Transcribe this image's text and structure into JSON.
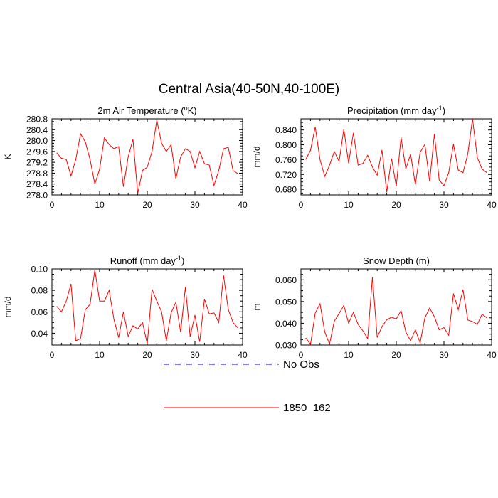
{
  "figure": {
    "title": "Central Asia(40-50N,40-100E)"
  },
  "colors": {
    "model": "#ff0000",
    "obs": "#0000ff",
    "axis": "#000000"
  },
  "legend": {
    "entries": [
      {
        "label": "No Obs",
        "style": "dashed",
        "color": "#0000ff"
      },
      {
        "label": "1850_162",
        "style": "solid",
        "color": "#ff0000"
      }
    ]
  },
  "chart_data": [
    {
      "type": "line",
      "title": "2m Air Temperature (°K)",
      "title_parts": [
        "2m Air Temperature (",
        "o",
        "K)"
      ],
      "ylabel": "K",
      "xlim": [
        0,
        40
      ],
      "ylim": [
        278.0,
        280.8
      ],
      "xticks": [
        0,
        10,
        20,
        30,
        40
      ],
      "yticks": [
        278.0,
        278.4,
        278.8,
        279.2,
        279.6,
        280.0,
        280.4,
        280.8
      ],
      "ytick_labels": [
        "278.0",
        "278.4",
        "278.8",
        "279.2",
        "279.6",
        "280.0",
        "280.4",
        "280.8"
      ],
      "series": [
        {
          "name": "1850_162",
          "x": [
            1,
            2,
            3,
            4,
            5,
            6,
            7,
            8,
            9,
            10,
            11,
            12,
            13,
            14,
            15,
            16,
            17,
            18,
            19,
            20,
            21,
            22,
            23,
            24,
            25,
            26,
            27,
            28,
            29,
            30,
            31,
            32,
            33,
            34,
            35,
            36,
            37,
            38,
            39
          ],
          "values": [
            279.55,
            279.35,
            279.3,
            278.7,
            279.3,
            280.25,
            279.95,
            279.3,
            278.4,
            278.95,
            280.1,
            279.85,
            279.7,
            279.78,
            278.3,
            279.4,
            280.05,
            278.05,
            278.9,
            279.02,
            279.6,
            280.75,
            279.9,
            279.6,
            279.85,
            278.6,
            279.4,
            279.7,
            279.6,
            279.0,
            279.6,
            279.15,
            279.1,
            278.35,
            278.9,
            279.7,
            279.75,
            278.9,
            278.78
          ]
        }
      ]
    },
    {
      "type": "line",
      "title": "Precipitation (mm day-1)",
      "title_parts": [
        "Precipitation (mm day",
        "-1",
        ")"
      ],
      "ylabel": "mm/d",
      "xlim": [
        0,
        40
      ],
      "ylim": [
        0.665,
        0.87
      ],
      "xticks": [
        0,
        10,
        20,
        30,
        40
      ],
      "yticks": [
        0.68,
        0.72,
        0.76,
        0.8,
        0.84
      ],
      "ytick_labels": [
        "0.680",
        "0.720",
        "0.760",
        "0.800",
        "0.840"
      ],
      "series": [
        {
          "name": "1850_162",
          "x": [
            1,
            2,
            3,
            4,
            5,
            6,
            7,
            8,
            9,
            10,
            11,
            12,
            13,
            14,
            15,
            16,
            17,
            18,
            19,
            20,
            21,
            22,
            23,
            24,
            25,
            26,
            27,
            28,
            29,
            30,
            31,
            32,
            33,
            34,
            35,
            36,
            37,
            38,
            39
          ],
          "values": [
            0.76,
            0.785,
            0.848,
            0.76,
            0.715,
            0.745,
            0.782,
            0.755,
            0.842,
            0.75,
            0.832,
            0.745,
            0.75,
            0.772,
            0.74,
            0.718,
            0.786,
            0.672,
            0.763,
            0.688,
            0.82,
            0.735,
            0.775,
            0.693,
            0.78,
            0.801,
            0.701,
            0.829,
            0.705,
            0.69,
            0.725,
            0.802,
            0.732,
            0.725,
            0.775,
            0.87,
            0.765,
            0.735,
            0.725
          ]
        }
      ]
    },
    {
      "type": "line",
      "title": "Runoff (mm day-1)",
      "title_parts": [
        "Runoff (mm day",
        "-1",
        ")"
      ],
      "ylabel": "mm/d",
      "xlim": [
        0,
        40
      ],
      "ylim": [
        0.029,
        0.1
      ],
      "xticks": [
        0,
        10,
        20,
        30,
        40
      ],
      "yticks": [
        0.04,
        0.06,
        0.08,
        0.1
      ],
      "ytick_labels": [
        "0.04",
        "0.06",
        "0.08",
        "0.10"
      ],
      "series": [
        {
          "name": "1850_162",
          "x": [
            1,
            2,
            3,
            4,
            5,
            6,
            7,
            8,
            9,
            10,
            11,
            12,
            13,
            14,
            15,
            16,
            17,
            18,
            19,
            20,
            21,
            22,
            23,
            24,
            25,
            26,
            27,
            28,
            29,
            30,
            31,
            32,
            33,
            34,
            35,
            36,
            37,
            38,
            39
          ],
          "values": [
            0.065,
            0.06,
            0.07,
            0.086,
            0.033,
            0.035,
            0.062,
            0.067,
            0.099,
            0.07,
            0.07,
            0.08,
            0.053,
            0.036,
            0.06,
            0.037,
            0.047,
            0.044,
            0.05,
            0.03,
            0.081,
            0.07,
            0.06,
            0.033,
            0.059,
            0.069,
            0.041,
            0.083,
            0.037,
            0.057,
            0.032,
            0.072,
            0.058,
            0.059,
            0.05,
            0.094,
            0.062,
            0.05,
            0.045
          ]
        }
      ]
    },
    {
      "type": "line",
      "title": "Snow Depth (m)",
      "title_parts": [
        "Snow Depth (m)",
        "",
        ""
      ],
      "ylabel": "m",
      "xlim": [
        0,
        40
      ],
      "ylim": [
        0.03,
        0.065
      ],
      "xticks": [
        0,
        10,
        20,
        30,
        40
      ],
      "yticks": [
        0.03,
        0.04,
        0.05,
        0.06
      ],
      "ytick_labels": [
        "0.030",
        "0.040",
        "0.050",
        "0.060"
      ],
      "series": [
        {
          "name": "1850_162",
          "x": [
            1,
            2,
            3,
            4,
            5,
            6,
            7,
            8,
            9,
            10,
            11,
            12,
            13,
            14,
            15,
            16,
            17,
            18,
            19,
            20,
            21,
            22,
            23,
            24,
            25,
            26,
            27,
            28,
            29,
            30,
            31,
            32,
            33,
            34,
            35,
            36,
            37,
            38,
            39
          ],
          "values": [
            0.0333,
            0.0303,
            0.0447,
            0.049,
            0.036,
            0.0305,
            0.041,
            0.0445,
            0.0482,
            0.04,
            0.045,
            0.0395,
            0.0365,
            0.033,
            0.0612,
            0.0335,
            0.0385,
            0.0416,
            0.0428,
            0.042,
            0.0458,
            0.036,
            0.032,
            0.037,
            0.031,
            0.0425,
            0.047,
            0.043,
            0.037,
            0.038,
            0.0345,
            0.0537,
            0.0462,
            0.0555,
            0.0415,
            0.0408,
            0.0395,
            0.0442,
            0.0425
          ]
        }
      ]
    }
  ]
}
